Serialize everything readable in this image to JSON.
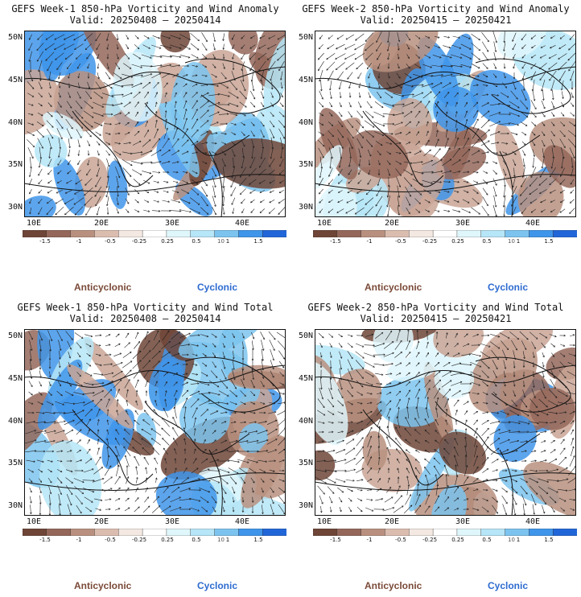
{
  "panels": [
    {
      "title": "GEFS Week-1 850-hPa Vorticity and Wind Anomaly",
      "valid": "Valid: 20250408 – 20250414",
      "kind": "anomaly",
      "seed": 11
    },
    {
      "title": "GEFS Week-2 850-hPa Vorticity and Wind Anomaly",
      "valid": "Valid: 20250415 – 20250421",
      "kind": "anomaly",
      "seed": 23
    },
    {
      "title": "GEFS Week-1 850-hPa Vorticity and Wind Total",
      "valid": "Valid: 20250408 – 20250414",
      "kind": "total",
      "seed": 37
    },
    {
      "title": "GEFS Week-2 850-hPa Vorticity and Wind Total",
      "valid": "Valid: 20250415 – 20250421",
      "kind": "total",
      "seed": 53
    }
  ],
  "lat_labels": [
    "50N",
    "45N",
    "40N",
    "35N",
    "30N"
  ],
  "lon_labels": [
    "10E",
    "20E",
    "30E",
    "40E"
  ],
  "colorbar": {
    "labels": [
      "-1.5",
      "-1",
      "-0.5",
      "-0.25",
      "0.25",
      "0.5",
      "1",
      "1.5"
    ],
    "unit": "10",
    "colors": [
      "#6e4537",
      "#94675a",
      "#b9907f",
      "#dbbdb0",
      "#f4e8e2",
      "#ffffff",
      "#dff6fb",
      "#b6e6f7",
      "#7cc4ef",
      "#3f95ea",
      "#2166d8"
    ]
  },
  "legend": {
    "anticyclonic": "Anticyclonic",
    "cyclonic": "Cyclonic"
  }
}
